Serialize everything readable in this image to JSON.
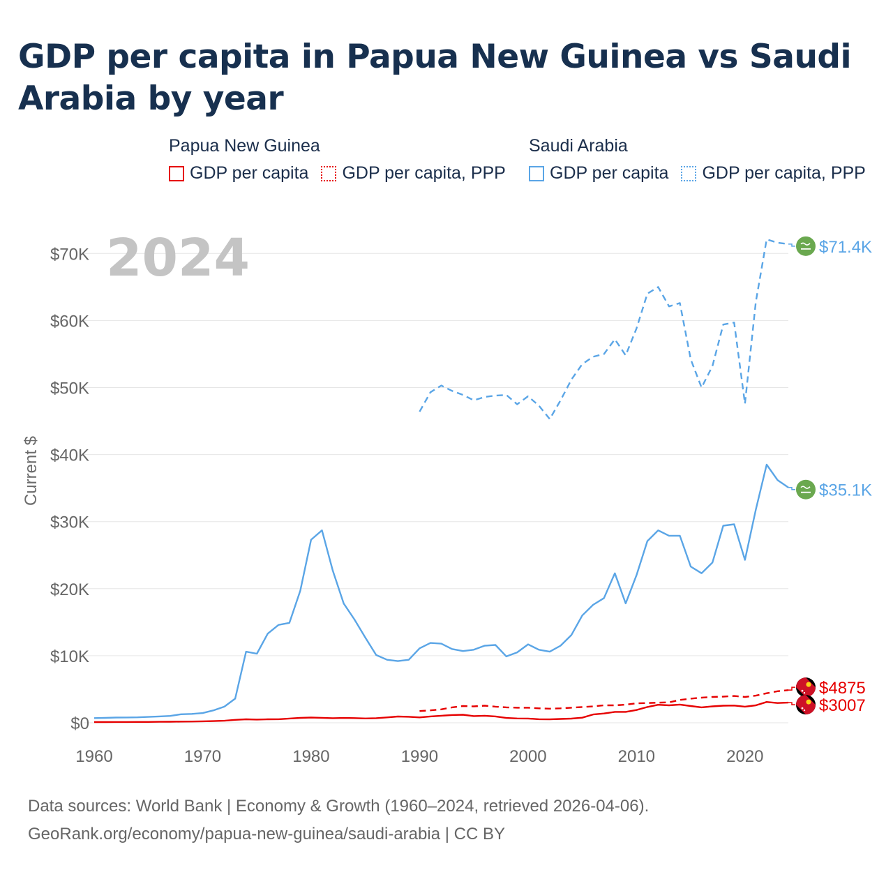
{
  "title": "GDP per capita in Papua New Guinea vs Saudi Arabia by year",
  "legend": {
    "groups": [
      {
        "name": "Papua New Guinea",
        "items": [
          {
            "label": "GDP per capita",
            "color": "#e60000",
            "style": "solid"
          },
          {
            "label": "GDP per capita, PPP",
            "color": "#e60000",
            "style": "dotted"
          }
        ]
      },
      {
        "name": "Saudi Arabia",
        "items": [
          {
            "label": "GDP per capita",
            "color": "#5aa5e6",
            "style": "solid"
          },
          {
            "label": "GDP per capita, PPP",
            "color": "#5aa5e6",
            "style": "dotted"
          }
        ]
      }
    ]
  },
  "footer": {
    "line1": "Data sources: World Bank | Economy & Growth (1960–2024, retrieved 2026-04-06).",
    "line2": "GeoRank.org/economy/papua-new-guinea/saudi-arabia | CC BY"
  },
  "chart_data": {
    "type": "line",
    "title": "GDP per capita in Papua New Guinea vs Saudi Arabia by year",
    "xlabel": "",
    "ylabel": "Current $",
    "xlim": [
      1960,
      2024
    ],
    "ylim": [
      0,
      72000
    ],
    "year_watermark": "2024",
    "x_ticks": [
      1960,
      1970,
      1980,
      1990,
      2000,
      2010,
      2020
    ],
    "y_ticks": [
      0,
      10000,
      20000,
      30000,
      40000,
      50000,
      60000,
      70000
    ],
    "y_tick_labels": [
      "$0",
      "$10K",
      "$20K",
      "$30K",
      "$40K",
      "$50K",
      "$60K",
      "$70K"
    ],
    "grid": true,
    "series": [
      {
        "name": "Saudi Arabia GDP per capita, PPP",
        "country": "Saudi Arabia",
        "color": "#5aa5e6",
        "dash": "dashed",
        "end_label": "$71.4K",
        "end_icon": "saudi-arabia-flag-icon",
        "start_year": 1990,
        "values": [
          46400,
          49300,
          50300,
          49500,
          48900,
          48100,
          48600,
          48800,
          48900,
          47500,
          48700,
          47300,
          45300,
          48100,
          51200,
          53500,
          54600,
          55000,
          57200,
          54800,
          58800,
          64000,
          65000,
          62100,
          62600,
          54200,
          50000,
          53200,
          59400,
          59700,
          47600,
          62800,
          72100,
          71600,
          71400
        ]
      },
      {
        "name": "Saudi Arabia GDP per capita",
        "country": "Saudi Arabia",
        "color": "#5aa5e6",
        "dash": "solid",
        "end_label": "$35.1K",
        "end_icon": "saudi-arabia-flag-icon",
        "start_year": 1960,
        "values": [
          700,
          730,
          780,
          790,
          810,
          870,
          950,
          1020,
          1270,
          1320,
          1450,
          1850,
          2400,
          3600,
          10600,
          10300,
          13300,
          14600,
          14900,
          19700,
          27300,
          28700,
          22700,
          17800,
          15400,
          12700,
          10100,
          9400,
          9200,
          9400,
          11100,
          11900,
          11800,
          11000,
          10700,
          10900,
          11500,
          11600,
          9900,
          10500,
          11700,
          10900,
          10600,
          11500,
          13100,
          16000,
          17600,
          18600,
          22300,
          17800,
          22000,
          27100,
          28700,
          27900,
          27900,
          23300,
          22300,
          23900,
          29400,
          29600,
          24300,
          31800,
          38500,
          36200,
          35100
        ]
      },
      {
        "name": "Papua New Guinea GDP per capita, PPP",
        "country": "Papua New Guinea",
        "color": "#e60000",
        "dash": "dashed",
        "end_label": "$4875",
        "end_icon": "papua-new-guinea-flag-icon",
        "start_year": 1990,
        "values": [
          1750,
          1850,
          2000,
          2300,
          2500,
          2450,
          2550,
          2400,
          2300,
          2250,
          2250,
          2150,
          2100,
          2150,
          2250,
          2350,
          2450,
          2600,
          2600,
          2700,
          2900,
          2950,
          3000,
          3050,
          3400,
          3600,
          3750,
          3850,
          3900,
          4000,
          3850,
          4050,
          4400,
          4700,
          4875
        ]
      },
      {
        "name": "Papua New Guinea GDP per capita",
        "country": "Papua New Guinea",
        "color": "#e60000",
        "dash": "solid",
        "end_label": "$3007",
        "end_icon": "papua-new-guinea-flag-icon",
        "start_year": 1960,
        "values": [
          100,
          105,
          110,
          115,
          120,
          130,
          145,
          160,
          175,
          190,
          215,
          245,
          300,
          440,
          520,
          480,
          520,
          530,
          630,
          730,
          780,
          740,
          690,
          720,
          700,
          640,
          690,
          800,
          940,
          900,
          800,
          950,
          1050,
          1150,
          1200,
          1000,
          1050,
          950,
          720,
          650,
          630,
          530,
          510,
          570,
          620,
          760,
          1240,
          1380,
          1620,
          1620,
          1900,
          2350,
          2680,
          2600,
          2720,
          2500,
          2300,
          2450,
          2550,
          2570,
          2400,
          2600,
          3100,
          2950,
          3007
        ]
      }
    ]
  }
}
